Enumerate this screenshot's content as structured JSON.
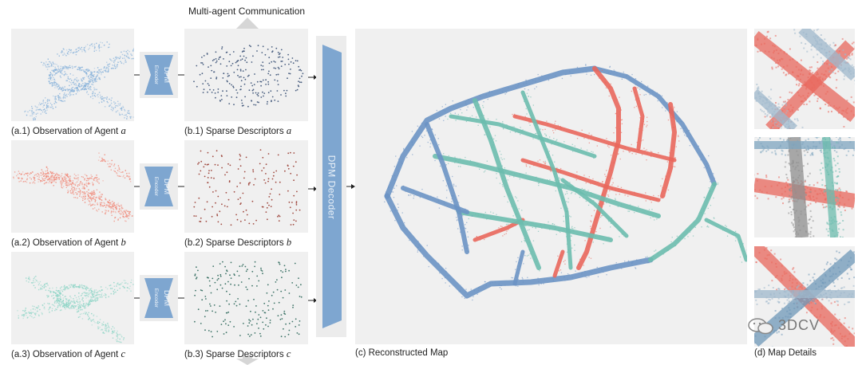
{
  "top_label": "Multi-agent Communication",
  "agents": [
    {
      "obs_prefix": "(a.1) Observation of Agent ",
      "desc_prefix": "(b.1) Sparse Descriptors ",
      "letter": "a",
      "color": "#8bb4db"
    },
    {
      "obs_prefix": "(a.2) Observation of Agent ",
      "desc_prefix": "(b.2) Sparse Descriptors ",
      "letter": "b",
      "color": "#f08a7a"
    },
    {
      "obs_prefix": "(a.3) Observation of Agent ",
      "desc_prefix": "(b.3) Sparse Descriptors ",
      "letter": "c",
      "color": "#92d6c8"
    }
  ],
  "encoder": {
    "line1": "DPM",
    "line2": "Encoder",
    "color": "#7ea6d0"
  },
  "decoder": {
    "label": "DPM Decoder",
    "color": "#7ea6d0"
  },
  "reconstructed_caption": "(c) Reconstructed Map",
  "details_caption": "(d) Map Details",
  "watermark": "3DCV",
  "colors": {
    "blue": "#6b93c4",
    "red": "#e9675c",
    "teal": "#6cbcae",
    "panel": "#f0f0f0"
  }
}
